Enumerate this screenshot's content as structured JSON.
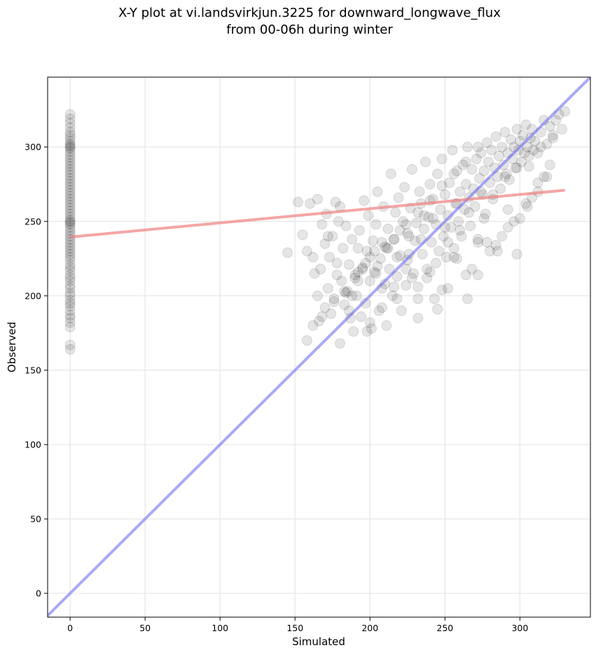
{
  "chart_data": {
    "type": "scatter",
    "title_lines": [
      "X-Y plot at vi.landsvirkjun.3225 for downward_longwave_flux",
      "from 00-06h during winter"
    ],
    "xlabel": "Simulated",
    "ylabel": "Observed",
    "xlim": [
      -15,
      347
    ],
    "ylim": [
      -16,
      347
    ],
    "xticks": [
      0,
      50,
      100,
      150,
      200,
      250,
      300
    ],
    "yticks": [
      0,
      50,
      100,
      150,
      200,
      250,
      300
    ],
    "grid": true,
    "colors": {
      "points": "#000000",
      "fit_line": "#f08080",
      "one_to_one_line": "#7070f0"
    },
    "fit_line": {
      "x": [
        0,
        330
      ],
      "y": [
        239.5,
        271
      ]
    },
    "one_to_one_line": {
      "x": [
        -15,
        347
      ],
      "y": [
        -15,
        347
      ]
    },
    "points_at_zero": {
      "x": 0,
      "y": [
        164,
        167,
        179,
        182,
        185,
        187,
        190,
        193,
        195,
        197,
        200,
        202,
        205,
        207,
        210,
        212,
        214,
        217,
        219,
        221,
        224,
        226,
        228,
        230,
        232,
        234,
        236,
        238,
        240,
        242,
        244,
        246,
        248,
        249,
        250,
        251,
        253,
        255,
        257,
        259,
        261,
        263,
        265,
        267,
        269,
        271,
        273,
        275,
        277,
        279,
        281,
        283,
        285,
        287,
        289,
        291,
        293,
        295,
        297,
        299,
        300,
        301,
        302,
        304,
        306,
        308,
        310,
        313,
        316,
        319,
        322
      ]
    },
    "points": {
      "x": [
        145,
        152,
        155,
        158,
        160,
        162,
        163,
        165,
        166,
        167,
        168,
        170,
        171,
        172,
        173,
        174,
        175,
        176,
        177,
        178,
        179,
        180,
        181,
        182,
        183,
        184,
        185,
        186,
        187,
        188,
        189,
        190,
        191,
        192,
        193,
        194,
        195,
        196,
        197,
        198,
        199,
        200,
        201,
        202,
        203,
        204,
        205,
        206,
        207,
        208,
        209,
        210,
        211,
        212,
        213,
        214,
        215,
        216,
        217,
        218,
        219,
        220,
        221,
        222,
        223,
        224,
        225,
        226,
        227,
        228,
        229,
        230,
        231,
        232,
        233,
        234,
        235,
        236,
        237,
        238,
        239,
        240,
        241,
        242,
        243,
        244,
        245,
        246,
        247,
        248,
        249,
        250,
        251,
        252,
        253,
        254,
        255,
        256,
        257,
        258,
        259,
        260,
        261,
        262,
        263,
        264,
        265,
        266,
        267,
        268,
        269,
        270,
        271,
        272,
        273,
        274,
        275,
        276,
        277,
        278,
        279,
        280,
        281,
        282,
        283,
        284,
        285,
        286,
        287,
        288,
        289,
        290,
        291,
        292,
        293,
        294,
        295,
        296,
        297,
        298,
        299,
        300,
        301,
        302,
        303,
        304,
        305,
        306,
        307,
        308,
        309,
        310,
        312,
        314,
        316,
        318,
        320,
        322,
        324,
        326,
        328,
        330,
        158,
        165,
        172,
        180,
        186,
        192,
        198,
        205,
        212,
        218,
        225,
        232,
        238,
        245,
        252,
        258,
        265,
        272,
        278,
        285,
        292,
        298,
        305,
        312,
        318,
        162,
        170,
        178,
        188,
        195,
        203,
        210,
        220,
        228,
        236,
        244,
        252,
        260,
        268,
        276,
        284,
        292,
        300,
        308,
        316,
        183,
        190,
        197,
        204,
        211,
        218,
        226,
        234,
        242,
        250,
        258,
        266,
        274,
        282,
        290,
        298,
        306,
        314,
        322,
        200,
        208,
        216,
        224,
        232,
        240,
        248,
        256,
        264,
        272,
        280,
        288,
        296,
        304,
        312,
        320,
        168,
        176,
        184,
        192,
        200,
        208,
        216,
        224,
        232,
        240,
        248,
        256,
        264,
        272
      ],
      "y": [
        229,
        263,
        241,
        230,
        262,
        226,
        215,
        265,
        183,
        218,
        248,
        235,
        255,
        205,
        226,
        188,
        240,
        198,
        263,
        222,
        250,
        168,
        210,
        232,
        194,
        247,
        203,
        221,
        185,
        238,
        176,
        214,
        200,
        232,
        244,
        186,
        219,
        264,
        195,
        230,
        254,
        210,
        178,
        237,
        216,
        248,
        270,
        190,
        225,
        205,
        260,
        233,
        180,
        245,
        218,
        282,
        200,
        238,
        256,
        213,
        266,
        227,
        190,
        250,
        273,
        207,
        242,
        228,
        259,
        285,
        215,
        237,
        249,
        206,
        270,
        262,
        228,
        245,
        290,
        218,
        253,
        275,
        236,
        265,
        198,
        248,
        282,
        230,
        258,
        292,
        240,
        268,
        226,
        254,
        276,
        246,
        298,
        232,
        262,
        284,
        250,
        270,
        240,
        288,
        258,
        275,
        300,
        266,
        247,
        285,
        272,
        260,
        292,
        238,
        279,
        296,
        268,
        284,
        255,
        303,
        290,
        276,
        298,
        265,
        286,
        307,
        280,
        294,
        272,
        300,
        288,
        310,
        282,
        296,
        278,
        305,
        292,
        300,
        286,
        312,
        298,
        304,
        290,
        308,
        296,
        315,
        300,
        287,
        306,
        312,
        298,
        304,
        296,
        310,
        318,
        302,
        314,
        306,
        318,
        322,
        312,
        324,
        170,
        200,
        240,
        260,
        190,
        210,
        176,
        220,
        232,
        198,
        224,
        185,
        212,
        191,
        205,
        225,
        198,
        214,
        236,
        230,
        246,
        228,
        260,
        270,
        280,
        180,
        192,
        214,
        200,
        218,
        230,
        208,
        244,
        212,
        254,
        222,
        236,
        244,
        218,
        252,
        234,
        258,
        252,
        266,
        280,
        203,
        212,
        222,
        215,
        232,
        226,
        240,
        238,
        252,
        246,
        262,
        256,
        270,
        268,
        280,
        286,
        294,
        300,
        308,
        182,
        192,
        206,
        218,
        198,
        216,
        204,
        226,
        214,
        236,
        230,
        240,
        250,
        262,
        276,
        288,
        186,
        196,
        202,
        216,
        226,
        236,
        238,
        248,
        256,
        264,
        274,
        282,
        290,
        300
      ]
    }
  }
}
